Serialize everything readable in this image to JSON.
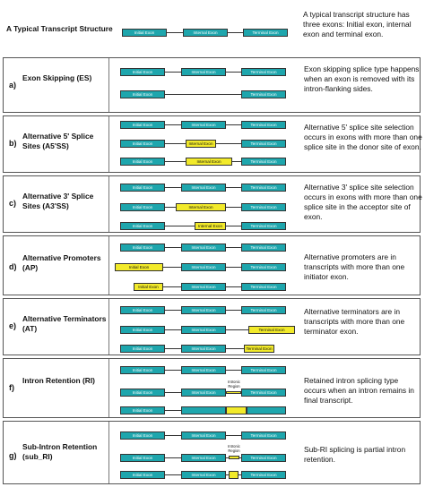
{
  "labels": {
    "initial": "Initial Exon",
    "internal": "Internal Exon",
    "terminal": "Terminal Exon",
    "intronic_region": "Intronic Region"
  },
  "rows": [
    {
      "letter": "",
      "title": "A Typical Transcript Structure",
      "description": "A typical transcript structure has three exons: Initial exon, internal exon and terminal exon."
    },
    {
      "letter": "a)",
      "title": "Exon Skipping (ES)",
      "description": "Exon skipping splice type happens when an exon is removed with its intron-flanking sides."
    },
    {
      "letter": "b)",
      "title": "Alternative 5' Splice Sites (A5'SS)",
      "description": "Alternative 5' splice site selection occurs in exons with more than one splice site in the donor site of exon."
    },
    {
      "letter": "c)",
      "title": "Alternative 3' Splice Sites (A3'SS)",
      "description": "Alternative 3' splice site selection occurs in exons with more than one splice site in the acceptor site of exon."
    },
    {
      "letter": "d)",
      "title": "Alternative Promoters (AP)",
      "description": "Alternative promoters are in transcripts with more than one initiator exon."
    },
    {
      "letter": "e)",
      "title": "Alternative Terminators (AT)",
      "description": "Alternative terminators are in transcripts with more than one terminator exon."
    },
    {
      "letter": "f)",
      "title": "Intron Retention (RI)",
      "description": "Retained intron splicing type occurs when an intron remains in final transcript."
    },
    {
      "letter": "g)",
      "title": "Sub-Intron Retention (sub_RI)",
      "description": "Sub-RI splicing is partial intron retention."
    }
  ]
}
